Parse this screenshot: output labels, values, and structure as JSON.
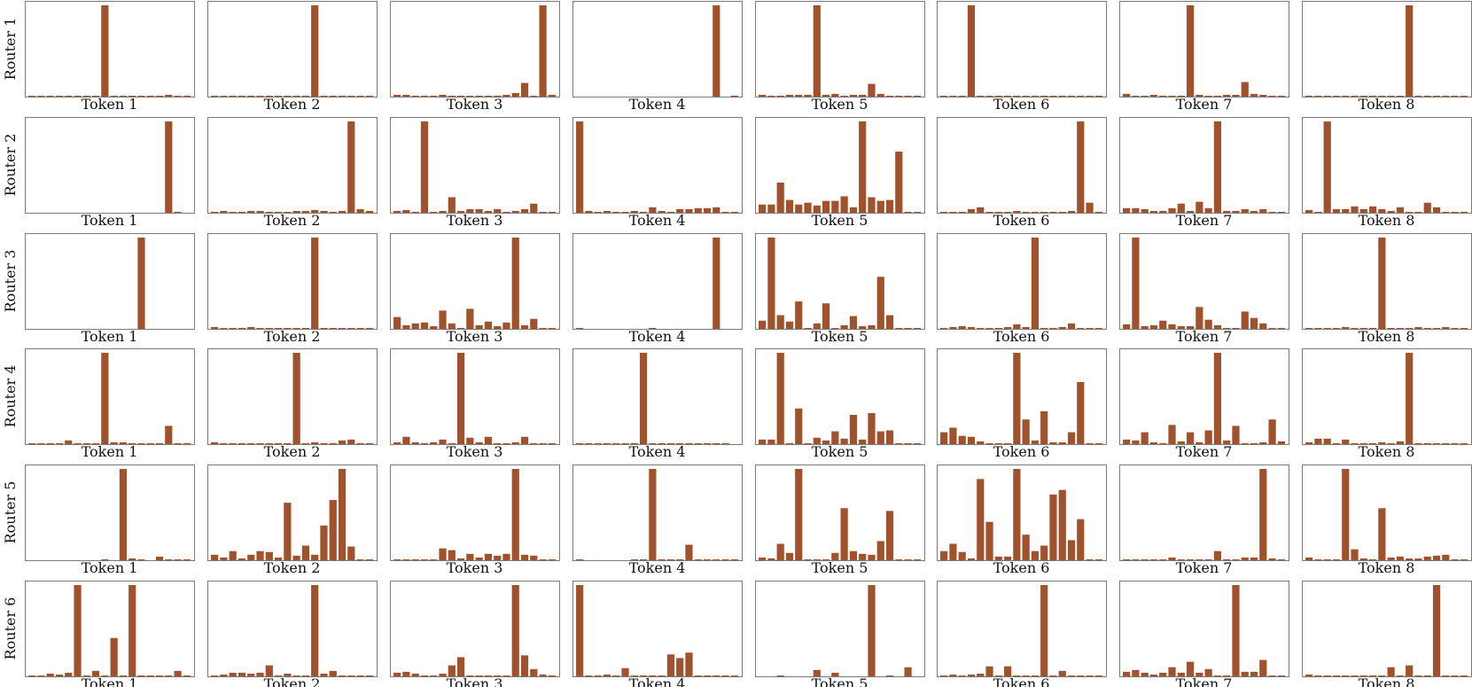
{
  "chart_data": {
    "type": "bar",
    "title": "",
    "ylim": [
      0,
      1
    ],
    "grid": false,
    "bar_color": "#a0522d",
    "routers": [
      "Router 1",
      "Router 2",
      "Router 3",
      "Router 4",
      "Router 5",
      "Router 6"
    ],
    "tokens": [
      "Token 1",
      "Token 2",
      "Token 3",
      "Token 4",
      "Token 5",
      "Token 6",
      "Token 7",
      "Token 8"
    ],
    "values": [
      [
        [
          0.01,
          0.01,
          0.01,
          0.01,
          0.01,
          0.01,
          0.01,
          0.01,
          1.0,
          0.01,
          0.01,
          0.01,
          0.01,
          0.01,
          0.01,
          0.02,
          0.01,
          0.01
        ],
        [
          0.01,
          0.01,
          0.01,
          0.01,
          0.01,
          0.01,
          0.01,
          0.01,
          0.01,
          0.01,
          0.01,
          1.0,
          0.01,
          0.01,
          0.01,
          0.01,
          0.01,
          0.01
        ],
        [
          0.02,
          0.02,
          0.01,
          0.01,
          0.01,
          0.02,
          0.01,
          0.01,
          0.01,
          0.01,
          0.01,
          0.01,
          0.02,
          0.04,
          0.15,
          0.01,
          1.0,
          0.02
        ],
        [
          0.0,
          0.0,
          0.0,
          0.0,
          0.0,
          0.0,
          0.0,
          0.0,
          0.0,
          0.0,
          0.0,
          0.0,
          0.0,
          0.0,
          0.0,
          1.0,
          0.0,
          0.01
        ],
        [
          0.02,
          0.01,
          0.01,
          0.02,
          0.02,
          0.02,
          1.0,
          0.02,
          0.03,
          0.01,
          0.02,
          0.02,
          0.14,
          0.03,
          0.01,
          0.01,
          0.01,
          0.01
        ],
        [
          0.01,
          0.01,
          0.01,
          1.0,
          0.01,
          0.01,
          0.01,
          0.01,
          0.01,
          0.01,
          0.01,
          0.01,
          0.01,
          0.01,
          0.01,
          0.01,
          0.01,
          0.01
        ],
        [
          0.03,
          0.01,
          0.01,
          0.02,
          0.01,
          0.01,
          0.01,
          1.0,
          0.02,
          0.01,
          0.01,
          0.02,
          0.02,
          0.16,
          0.03,
          0.02,
          0.01,
          0.01
        ],
        [
          0.01,
          0.01,
          0.01,
          0.01,
          0.01,
          0.01,
          0.01,
          0.01,
          0.01,
          0.01,
          0.01,
          1.0,
          0.01,
          0.01,
          0.01,
          0.01,
          0.01,
          0.01
        ]
      ],
      [
        [
          0.0,
          0.0,
          0.0,
          0.0,
          0.0,
          0.0,
          0.0,
          0.0,
          0.0,
          0.0,
          0.0,
          0.0,
          0.0,
          0.0,
          0.0,
          1.0,
          0.01,
          0.0
        ],
        [
          0.01,
          0.02,
          0.01,
          0.01,
          0.02,
          0.02,
          0.01,
          0.01,
          0.01,
          0.02,
          0.02,
          0.03,
          0.02,
          0.01,
          0.02,
          1.0,
          0.04,
          0.02
        ],
        [
          0.02,
          0.03,
          0.01,
          1.0,
          0.01,
          0.02,
          0.17,
          0.02,
          0.04,
          0.04,
          0.02,
          0.04,
          0.01,
          0.02,
          0.04,
          0.1,
          0.01,
          0.01
        ],
        [
          1.0,
          0.02,
          0.01,
          0.02,
          0.01,
          0.01,
          0.02,
          0.01,
          0.06,
          0.02,
          0.01,
          0.04,
          0.04,
          0.05,
          0.05,
          0.06,
          0.01,
          0.01
        ],
        [
          0.09,
          0.09,
          0.33,
          0.14,
          0.09,
          0.11,
          0.08,
          0.13,
          0.13,
          0.18,
          0.06,
          1.0,
          0.17,
          0.13,
          0.14,
          0.67,
          0.01,
          0.01
        ],
        [
          0.01,
          0.01,
          0.01,
          0.04,
          0.06,
          0.01,
          0.01,
          0.01,
          0.02,
          0.01,
          0.01,
          0.01,
          0.01,
          0.01,
          0.02,
          1.0,
          0.11,
          0.01
        ],
        [
          0.05,
          0.05,
          0.04,
          0.02,
          0.02,
          0.05,
          0.1,
          0.02,
          0.12,
          0.05,
          1.0,
          0.02,
          0.02,
          0.04,
          0.02,
          0.04,
          0.01,
          0.01
        ],
        [
          0.03,
          0.01,
          1.0,
          0.04,
          0.04,
          0.07,
          0.04,
          0.07,
          0.04,
          0.02,
          0.06,
          0.01,
          0.01,
          0.11,
          0.06,
          0.01,
          0.01,
          0.01
        ]
      ],
      [
        [
          0.0,
          0.0,
          0.0,
          0.0,
          0.0,
          0.0,
          0.0,
          0.0,
          0.0,
          0.0,
          0.0,
          0.0,
          1.0,
          0.0,
          0.0,
          0.0,
          0.0,
          0.0
        ],
        [
          0.02,
          0.01,
          0.01,
          0.01,
          0.02,
          0.01,
          0.01,
          0.01,
          0.01,
          0.01,
          0.01,
          1.0,
          0.01,
          0.01,
          0.01,
          0.01,
          0.01,
          0.01
        ],
        [
          0.13,
          0.04,
          0.06,
          0.07,
          0.03,
          0.2,
          0.06,
          0.01,
          0.22,
          0.04,
          0.08,
          0.03,
          0.07,
          1.0,
          0.04,
          0.11,
          0.01,
          0.01
        ],
        [
          0.01,
          0.0,
          0.0,
          0.0,
          0.0,
          0.0,
          0.0,
          0.0,
          0.01,
          0.0,
          0.0,
          0.0,
          0.0,
          0.0,
          0.0,
          1.0,
          0.0,
          0.0
        ],
        [
          0.09,
          1.0,
          0.15,
          0.08,
          0.3,
          0.01,
          0.06,
          0.28,
          0.01,
          0.04,
          0.14,
          0.03,
          0.04,
          0.57,
          0.15,
          0.01,
          0.01,
          0.01
        ],
        [
          0.01,
          0.02,
          0.03,
          0.02,
          0.01,
          0.01,
          0.01,
          0.02,
          0.05,
          0.02,
          1.0,
          0.01,
          0.01,
          0.02,
          0.06,
          0.01,
          0.01,
          0.01
        ],
        [
          0.05,
          1.0,
          0.03,
          0.04,
          0.09,
          0.05,
          0.03,
          0.03,
          0.24,
          0.1,
          0.04,
          0.01,
          0.01,
          0.19,
          0.12,
          0.06,
          0.01,
          0.01
        ],
        [
          0.01,
          0.01,
          0.01,
          0.01,
          0.02,
          0.01,
          0.01,
          0.01,
          1.0,
          0.01,
          0.01,
          0.01,
          0.02,
          0.01,
          0.01,
          0.02,
          0.01,
          0.01
        ]
      ],
      [
        [
          0.01,
          0.01,
          0.01,
          0.01,
          0.04,
          0.01,
          0.01,
          0.01,
          1.0,
          0.02,
          0.02,
          0.01,
          0.01,
          0.01,
          0.01,
          0.2,
          0.01,
          0.01
        ],
        [
          0.02,
          0.01,
          0.01,
          0.01,
          0.01,
          0.01,
          0.01,
          0.01,
          0.01,
          1.0,
          0.01,
          0.02,
          0.01,
          0.01,
          0.04,
          0.05,
          0.01,
          0.01
        ],
        [
          0.02,
          0.08,
          0.02,
          0.01,
          0.02,
          0.05,
          0.01,
          1.0,
          0.07,
          0.02,
          0.08,
          0.01,
          0.01,
          0.02,
          0.08,
          0.01,
          0.01,
          0.01
        ],
        [
          0.01,
          0.01,
          0.01,
          0.01,
          0.01,
          0.01,
          0.01,
          1.0,
          0.01,
          0.01,
          0.01,
          0.01,
          0.01,
          0.01,
          0.01,
          0.01,
          0.01,
          0.0
        ],
        [
          0.05,
          0.05,
          1.0,
          0.01,
          0.39,
          0.01,
          0.07,
          0.04,
          0.14,
          0.06,
          0.32,
          0.05,
          0.34,
          0.14,
          0.15,
          0.01,
          0.01,
          0.01
        ],
        [
          0.13,
          0.18,
          0.09,
          0.08,
          0.03,
          0.01,
          0.01,
          0.01,
          1.0,
          0.27,
          0.04,
          0.36,
          0.02,
          0.02,
          0.13,
          0.68,
          0.01,
          0.01
        ],
        [
          0.05,
          0.04,
          0.13,
          0.02,
          0.01,
          0.21,
          0.03,
          0.13,
          0.02,
          0.15,
          1.0,
          0.04,
          0.2,
          0.01,
          0.01,
          0.02,
          0.27,
          0.03
        ],
        [
          0.02,
          0.06,
          0.06,
          0.01,
          0.05,
          0.01,
          0.01,
          0.01,
          0.02,
          0.01,
          0.03,
          1.0,
          0.01,
          0.01,
          0.01,
          0.01,
          0.01,
          0.01
        ]
      ],
      [
        [
          0.0,
          0.0,
          0.0,
          0.0,
          0.0,
          0.0,
          0.0,
          0.0,
          0.01,
          0.0,
          1.0,
          0.02,
          0.01,
          0.0,
          0.04,
          0.01,
          0.01,
          0.01
        ],
        [
          0.06,
          0.03,
          0.1,
          0.02,
          0.06,
          0.1,
          0.09,
          0.03,
          0.63,
          0.05,
          0.16,
          0.06,
          0.38,
          0.66,
          1.0,
          0.15,
          0.01,
          0.01
        ],
        [
          0.01,
          0.01,
          0.01,
          0.01,
          0.01,
          0.13,
          0.11,
          0.02,
          0.07,
          0.03,
          0.07,
          0.05,
          0.07,
          1.0,
          0.06,
          0.05,
          0.01,
          0.01
        ],
        [
          0.01,
          0.0,
          0.0,
          0.0,
          0.0,
          0.0,
          0.01,
          0.01,
          1.0,
          0.01,
          0.01,
          0.01,
          0.17,
          0.01,
          0.01,
          0.01,
          0.01,
          0.01
        ],
        [
          0.03,
          0.02,
          0.18,
          0.08,
          1.0,
          0.01,
          0.01,
          0.01,
          0.08,
          0.57,
          0.1,
          0.07,
          0.06,
          0.21,
          0.54,
          0.01,
          0.01,
          0.01
        ],
        [
          0.1,
          0.18,
          0.09,
          0.02,
          0.89,
          0.42,
          0.04,
          0.04,
          1.0,
          0.28,
          0.1,
          0.16,
          0.72,
          0.77,
          0.22,
          0.45,
          0.01,
          0.01
        ],
        [
          0.01,
          0.01,
          0.01,
          0.01,
          0.01,
          0.03,
          0.01,
          0.01,
          0.01,
          0.01,
          0.1,
          0.01,
          0.01,
          0.03,
          0.03,
          1.0,
          0.02,
          0.01
        ],
        [
          0.03,
          0.01,
          0.01,
          0.01,
          1.0,
          0.12,
          0.02,
          0.01,
          0.57,
          0.03,
          0.04,
          0.02,
          0.02,
          0.04,
          0.05,
          0.06,
          0.01,
          0.01
        ]
      ],
      [
        [
          0.01,
          0.01,
          0.03,
          0.02,
          0.04,
          1.0,
          0.01,
          0.06,
          0.01,
          0.42,
          0.01,
          1.0,
          0.01,
          0.01,
          0.01,
          0.01,
          0.06,
          0.01
        ],
        [
          0.01,
          0.02,
          0.04,
          0.04,
          0.03,
          0.04,
          0.12,
          0.01,
          0.03,
          0.01,
          0.01,
          1.0,
          0.03,
          0.06,
          0.01,
          0.01,
          0.01,
          0.01
        ],
        [
          0.04,
          0.05,
          0.03,
          0.01,
          0.01,
          0.03,
          0.12,
          0.21,
          0.01,
          0.01,
          0.01,
          0.01,
          0.01,
          1.0,
          0.23,
          0.08,
          0.02,
          0.01
        ],
        [
          1.0,
          0.01,
          0.01,
          0.02,
          0.01,
          0.09,
          0.01,
          0.01,
          0.01,
          0.01,
          0.24,
          0.2,
          0.26,
          0.01,
          0.01,
          0.01,
          0.01,
          0.01
        ],
        [
          0.0,
          0.0,
          0.01,
          0.0,
          0.0,
          0.0,
          0.07,
          0.0,
          0.04,
          0.0,
          0.0,
          0.0,
          1.0,
          0.0,
          0.01,
          0.0,
          0.1,
          0.0
        ],
        [
          0.01,
          0.02,
          0.01,
          0.02,
          0.03,
          0.11,
          0.01,
          0.11,
          0.01,
          0.01,
          0.01,
          1.0,
          0.01,
          0.06,
          0.01,
          0.01,
          0.01,
          0.01
        ],
        [
          0.05,
          0.07,
          0.04,
          0.02,
          0.04,
          0.1,
          0.04,
          0.16,
          0.04,
          0.08,
          0.01,
          0.01,
          1.0,
          0.05,
          0.05,
          0.18,
          0.01,
          0.01
        ],
        [
          0.02,
          0.01,
          0.01,
          0.01,
          0.01,
          0.01,
          0.01,
          0.01,
          0.01,
          0.1,
          0.01,
          0.12,
          0.01,
          0.01,
          1.0,
          0.01,
          0.01,
          0.01
        ]
      ]
    ]
  }
}
